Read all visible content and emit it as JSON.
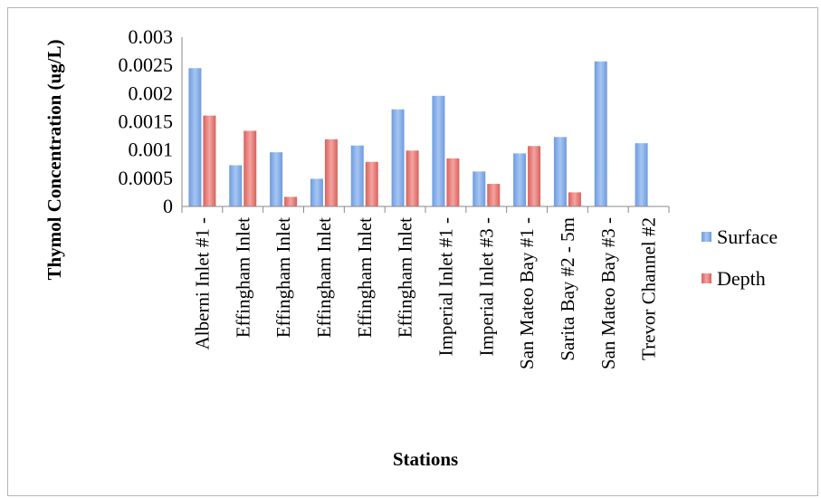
{
  "chart_data": {
    "type": "bar",
    "title": "",
    "xlabel": "Stations",
    "ylabel": "Thymol Concentration (ug/L)",
    "ylim": [
      0,
      0.003
    ],
    "yticks": [
      "0",
      "0.0005",
      "0.001",
      "0.0015",
      "0.002",
      "0.0025",
      "0.003"
    ],
    "categories": [
      "Alberni Inlet #1 - ",
      "Effingham Inlet",
      "Effingham Inlet",
      "Effingham Inlet",
      "Effingham Inlet",
      "Effingham Inlet",
      "Imperial Inlet #1 - ",
      "Imperial Inlet #3 - ",
      "San Mateo Bay #1 - ",
      "Sarita Bay #2 - 5m",
      "San Mateo Bay #3 - ",
      "Trevor Channel #2"
    ],
    "series": [
      {
        "name": "Surface",
        "color": "#7fa9e6",
        "values": [
          0.00245,
          0.00073,
          0.00096,
          0.00049,
          0.00108,
          0.00172,
          0.00196,
          0.00062,
          0.00094,
          0.00123,
          0.00257,
          0.00112
        ]
      },
      {
        "name": "Depth",
        "color": "#e57c78",
        "values": [
          0.00161,
          0.00134,
          0.00017,
          0.00119,
          0.00079,
          0.00099,
          0.00085,
          0.0004,
          0.00107,
          0.00025,
          null,
          null
        ]
      }
    ],
    "legend_position": "right",
    "grid": false
  }
}
